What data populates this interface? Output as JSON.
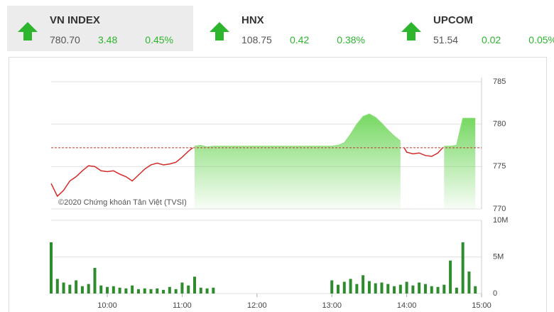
{
  "indices": [
    {
      "name": "VN INDEX",
      "value": "780.70",
      "change": "3.48",
      "percent": "0.45%"
    },
    {
      "name": "HNX",
      "value": "108.75",
      "change": "0.42",
      "percent": "0.38%"
    },
    {
      "name": "UPCOM",
      "value": "51.54",
      "change": "0.02",
      "percent": "0.05%"
    }
  ],
  "chart_data": [
    {
      "type": "line",
      "annotation": "©2020 Chứng khoán Tân Việt (TVSI)",
      "xlim": [
        "09:15",
        "15:00"
      ],
      "ylim": [
        770,
        785
      ],
      "yticks": [
        785,
        780,
        775,
        770
      ],
      "reference": 777.22,
      "grid": true,
      "x": [
        "09:15",
        "09:20",
        "09:25",
        "09:30",
        "09:35",
        "09:40",
        "09:45",
        "09:50",
        "09:55",
        "10:00",
        "10:05",
        "10:10",
        "10:15",
        "10:20",
        "10:25",
        "10:30",
        "10:35",
        "10:40",
        "10:45",
        "10:50",
        "10:55",
        "11:00",
        "11:05",
        "11:10",
        "11:15",
        "11:20",
        "11:25",
        "11:30",
        "13:00",
        "13:05",
        "13:10",
        "13:15",
        "13:20",
        "13:25",
        "13:30",
        "13:35",
        "13:40",
        "13:45",
        "13:50",
        "13:55",
        "14:00",
        "14:05",
        "14:10",
        "14:15",
        "14:20",
        "14:25",
        "14:30",
        "14:35",
        "14:40",
        "14:45",
        "14:50",
        "14:55"
      ],
      "series": [
        {
          "color": "#d42a2a",
          "values": [
            773.0,
            771.5,
            772.2,
            773.3,
            773.8,
            774.5,
            775.1,
            775.0,
            774.5,
            774.4,
            774.5,
            774.1,
            773.8,
            773.3,
            774.0,
            774.7,
            775.2,
            775.4,
            775.2,
            775.3,
            775.5,
            776.1,
            776.8,
            777.4,
            777.5,
            777.3,
            777.4,
            777.4,
            777.4,
            777.5,
            777.8,
            778.8,
            780.0,
            780.9,
            781.2,
            780.8,
            780.1,
            779.3,
            778.6,
            778.0,
            776.7,
            776.5,
            776.6,
            776.3,
            776.2,
            776.6,
            777.4,
            777.4,
            777.5,
            780.7,
            780.7,
            780.7
          ]
        }
      ]
    },
    {
      "type": "bar",
      "color": "#2e8b2e",
      "xlim": [
        "09:15",
        "15:00"
      ],
      "ylim": [
        0,
        10000000
      ],
      "yticks": [
        {
          "value": 10000000,
          "label": "10M"
        },
        {
          "value": 5000000,
          "label": "5M"
        },
        0
      ],
      "xticks": [
        "10:00",
        "11:00",
        "12:00",
        "13:00",
        "14:00",
        "15:00"
      ],
      "x": [
        "09:15",
        "09:20",
        "09:25",
        "09:30",
        "09:35",
        "09:40",
        "09:45",
        "09:50",
        "09:55",
        "10:00",
        "10:05",
        "10:10",
        "10:15",
        "10:20",
        "10:25",
        "10:30",
        "10:35",
        "10:40",
        "10:45",
        "10:50",
        "10:55",
        "11:00",
        "11:05",
        "11:10",
        "11:15",
        "11:20",
        "11:25",
        "13:00",
        "13:05",
        "13:10",
        "13:15",
        "13:20",
        "13:25",
        "13:30",
        "13:35",
        "13:40",
        "13:45",
        "13:50",
        "13:55",
        "14:00",
        "14:05",
        "14:10",
        "14:15",
        "14:20",
        "14:25",
        "14:30",
        "14:35",
        "14:40",
        "14:45",
        "14:50",
        "14:55"
      ],
      "values": [
        7000000,
        2000000,
        1500000,
        1200000,
        1800000,
        1000000,
        1300000,
        3500000,
        1100000,
        900000,
        1000000,
        800000,
        700000,
        1100000,
        600000,
        700000,
        600000,
        700000,
        500000,
        900000,
        600000,
        1500000,
        1100000,
        2300000,
        800000,
        700000,
        800000,
        1800000,
        1200000,
        1600000,
        2000000,
        1300000,
        2500000,
        1700000,
        1400000,
        1500000,
        1300000,
        1000000,
        1200000,
        1600000,
        1100000,
        1500000,
        1300000,
        1000000,
        900000,
        1200000,
        4500000,
        800000,
        7000000,
        3000000,
        1000000
      ]
    }
  ]
}
